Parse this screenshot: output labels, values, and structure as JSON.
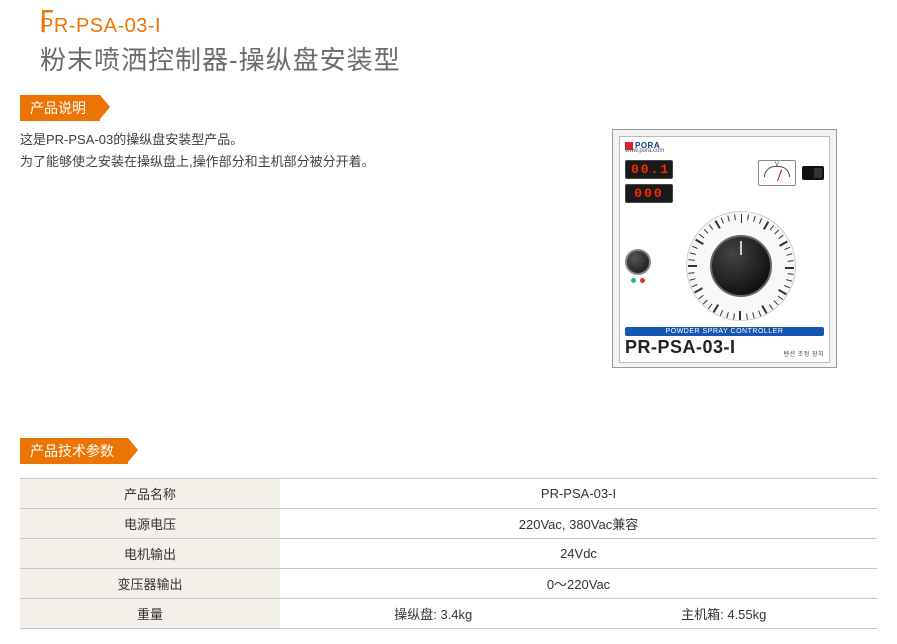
{
  "header": {
    "model": "PR-PSA-03-I",
    "title": "粉末喷洒控制器-操纵盘安装型"
  },
  "sections": {
    "desc_tag": "产品说明",
    "spec_tag": "产品技术参数"
  },
  "description": {
    "line1": "这是PR-PSA-03的操纵盘安装型产品。",
    "line2": "为了能够使之安装在操纵盘上,操作部分和主机部分被分开着。"
  },
  "device": {
    "brand": "PORA",
    "url": "www.pora.com",
    "display1": "00.1",
    "display2": "000",
    "gauge_label": "V",
    "strip": "POWDER SPRAY CONTROLLER",
    "model": "PR-PSA-03-I",
    "sub_label": "텐션 조정 장치",
    "colors": {
      "panel_bg": "#f2f3f4",
      "seg_bg": "#1a1a1a",
      "seg_fg": "#ff2a00",
      "strip_bg": "#1556b0",
      "brand_sq": "#d9232e",
      "brand_txt": "#0a3a8a"
    }
  },
  "specs": {
    "rows": [
      {
        "label": "产品名称",
        "value": "PR-PSA-03-I"
      },
      {
        "label": "电源电压",
        "value": "220Vac, 380Vac兼容"
      },
      {
        "label": "电机输出",
        "value": "24Vdc"
      },
      {
        "label": "变压器输出",
        "value": "0～220Vac"
      }
    ],
    "weight": {
      "label": "重量",
      "left": "操纵盘: 3.4kg",
      "right": "主机箱: 4.55kg"
    }
  },
  "style": {
    "accent": "#ec7404",
    "text_gray": "#6b6b6b",
    "tbl_header_bg": "#f3efe9",
    "tbl_border": "#c7c7c7"
  }
}
